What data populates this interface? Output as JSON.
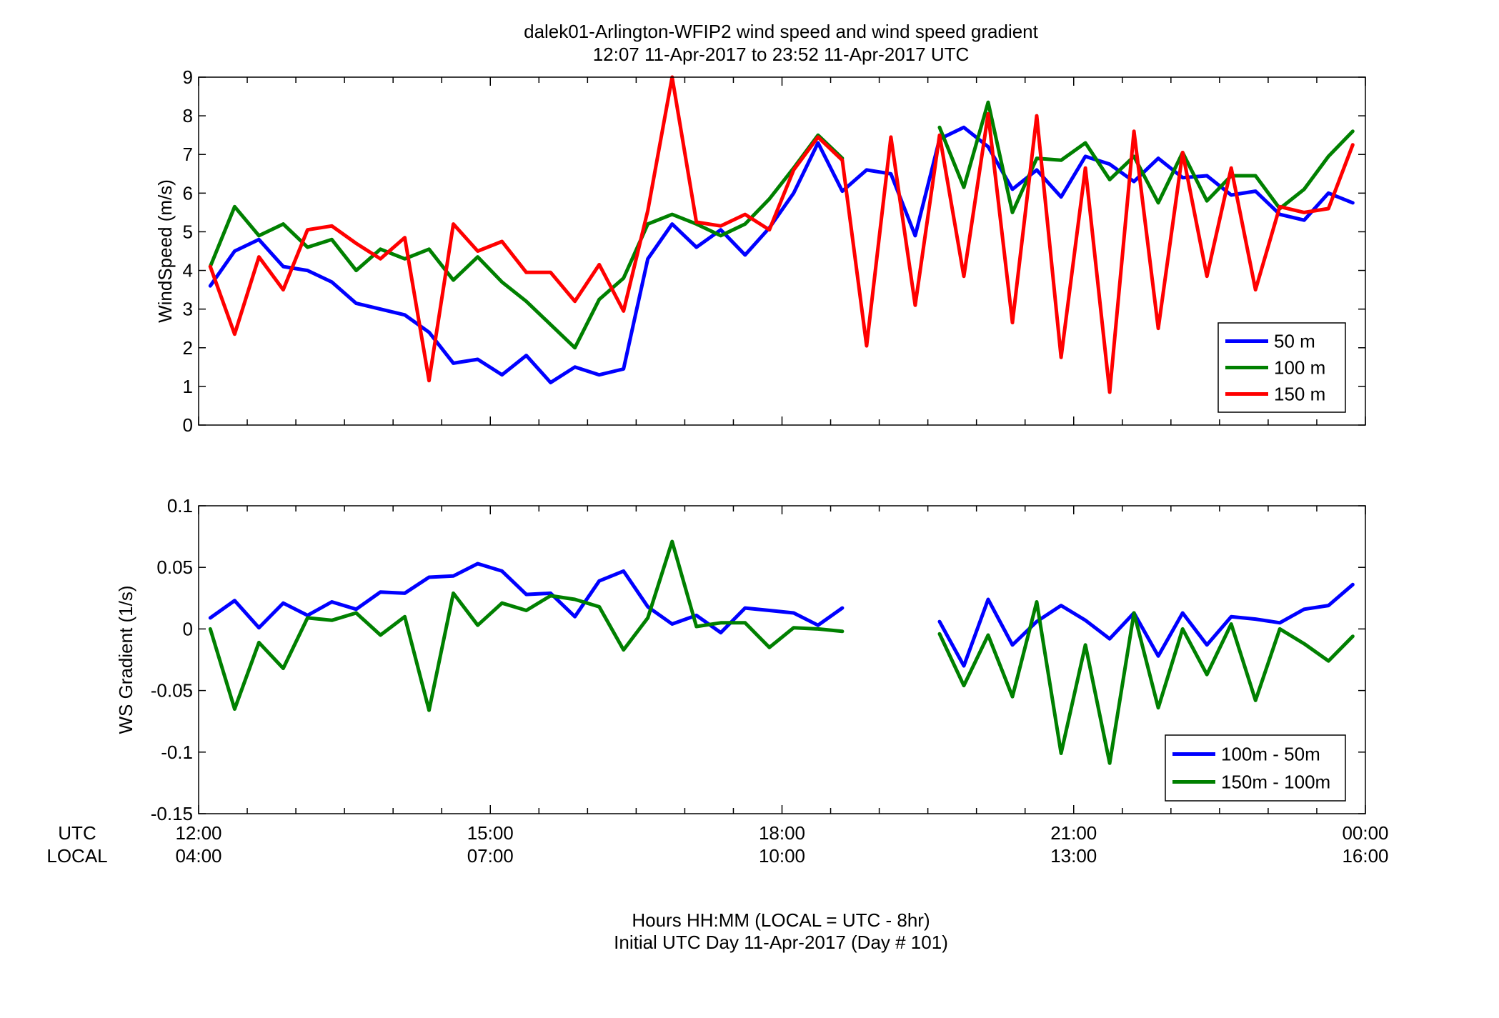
{
  "figure": {
    "title_line1": "dalek01-Arlington-WFIP2  wind speed and wind speed gradient",
    "title_line2": "12:07 11-Apr-2017 to 23:52 11-Apr-2017  UTC",
    "row_label_utc": "UTC",
    "row_label_local": "LOCAL",
    "footer_line1": "Hours HH:MM  (LOCAL = UTC - 8hr)",
    "footer_line2": "Initial UTC Day 11-Apr-2017 (Day # 101)",
    "x_ticks": [
      {
        "value": 12,
        "utc": "12:00",
        "local": "04:00"
      },
      {
        "value": 15,
        "utc": "15:00",
        "local": "07:00"
      },
      {
        "value": 18,
        "utc": "18:00",
        "local": "10:00"
      },
      {
        "value": 21,
        "utc": "21:00",
        "local": "13:00"
      },
      {
        "value": 24,
        "utc": "00:00",
        "local": "16:00"
      }
    ]
  },
  "chart_data": [
    {
      "type": "line",
      "ylabel": "WindSpeed (m/s)",
      "xlim": [
        12,
        24
      ],
      "ylim": [
        0,
        9
      ],
      "yticks": [
        0,
        1,
        2,
        3,
        4,
        5,
        6,
        7,
        8,
        9
      ],
      "ytick_labels": [
        "0",
        "1",
        "2",
        "3",
        "4",
        "5",
        "6",
        "7",
        "8",
        "9"
      ],
      "legend_position": "bottom-right",
      "x": [
        12.12,
        12.37,
        12.62,
        12.87,
        13.12,
        13.37,
        13.62,
        13.87,
        14.12,
        14.37,
        14.62,
        14.87,
        15.12,
        15.37,
        15.62,
        15.87,
        16.12,
        16.37,
        16.62,
        16.87,
        17.12,
        17.37,
        17.62,
        17.87,
        18.12,
        18.37,
        18.62,
        18.87,
        19.12,
        19.37,
        19.62,
        19.87,
        20.12,
        20.37,
        20.62,
        20.87,
        21.12,
        21.37,
        21.62,
        21.87,
        22.12,
        22.37,
        22.62,
        22.87,
        23.12,
        23.37,
        23.62,
        23.87
      ],
      "series": [
        {
          "name": "50 m",
          "color": "#0000ff",
          "values": [
            3.6,
            4.5,
            4.8,
            4.1,
            4.0,
            3.7,
            3.15,
            3.0,
            2.85,
            2.4,
            1.6,
            1.7,
            1.3,
            1.8,
            1.1,
            1.5,
            1.3,
            1.45,
            4.3,
            5.2,
            4.6,
            5.05,
            4.4,
            5.1,
            6.0,
            7.3,
            6.05,
            6.6,
            6.5,
            4.9,
            7.4,
            7.7,
            7.2,
            6.1,
            6.6,
            5.9,
            6.95,
            6.75,
            6.3,
            6.9,
            6.4,
            6.45,
            5.95,
            6.05,
            5.45,
            5.3,
            6.0,
            5.75
          ]
        },
        {
          "name": "100 m",
          "color": "#008000",
          "values": [
            4.1,
            5.65,
            4.9,
            5.2,
            4.6,
            4.8,
            4.0,
            4.55,
            4.3,
            4.55,
            3.75,
            4.35,
            3.7,
            3.2,
            2.6,
            2.0,
            3.25,
            3.8,
            5.2,
            5.45,
            5.2,
            4.9,
            5.2,
            5.85,
            6.65,
            7.5,
            6.9,
            null,
            null,
            null,
            7.7,
            6.15,
            8.35,
            5.5,
            6.9,
            6.85,
            7.3,
            6.35,
            6.95,
            5.75,
            7.05,
            5.8,
            6.45,
            6.45,
            5.6,
            6.1,
            6.95,
            7.6
          ]
        },
        {
          "name": "150 m",
          "color": "#ff0000",
          "values": [
            4.1,
            2.35,
            4.35,
            3.5,
            5.05,
            5.15,
            4.7,
            4.3,
            4.85,
            1.15,
            5.2,
            4.5,
            4.75,
            3.95,
            3.95,
            3.2,
            4.15,
            2.95,
            5.55,
            9.0,
            5.25,
            5.15,
            5.45,
            5.05,
            6.6,
            7.45,
            6.85,
            2.05,
            7.45,
            3.1,
            7.5,
            3.85,
            8.05,
            2.65,
            8.0,
            1.75,
            6.65,
            0.85,
            7.6,
            2.5,
            7.05,
            3.85,
            6.65,
            3.5,
            5.65,
            5.5,
            5.6,
            7.25
          ]
        }
      ]
    },
    {
      "type": "line",
      "ylabel": "WS Gradient (1/s)",
      "xlim": [
        12,
        24
      ],
      "ylim": [
        -0.15,
        0.1
      ],
      "yticks": [
        -0.15,
        -0.1,
        -0.05,
        0,
        0.05,
        0.1
      ],
      "ytick_labels": [
        "-0.15",
        "-0.1",
        "-0.05",
        "0",
        "0.05",
        "0.1"
      ],
      "legend_position": "bottom-right",
      "x": [
        12.12,
        12.37,
        12.62,
        12.87,
        13.12,
        13.37,
        13.62,
        13.87,
        14.12,
        14.37,
        14.62,
        14.87,
        15.12,
        15.37,
        15.62,
        15.87,
        16.12,
        16.37,
        16.62,
        16.87,
        17.12,
        17.37,
        17.62,
        17.87,
        18.12,
        18.37,
        18.62,
        18.87,
        19.12,
        19.37,
        19.62,
        19.87,
        20.12,
        20.37,
        20.62,
        20.87,
        21.12,
        21.37,
        21.62,
        21.87,
        22.12,
        22.37,
        22.62,
        22.87,
        23.12,
        23.37,
        23.62,
        23.87
      ],
      "series": [
        {
          "name": "100m - 50m",
          "color": "#0000ff",
          "values": [
            0.009,
            0.023,
            0.001,
            0.021,
            0.011,
            0.022,
            0.016,
            0.03,
            0.029,
            0.042,
            0.043,
            0.053,
            0.047,
            0.028,
            0.029,
            0.01,
            0.039,
            0.047,
            0.018,
            0.004,
            0.011,
            -0.003,
            0.017,
            0.015,
            0.013,
            0.003,
            0.017,
            null,
            null,
            null,
            0.006,
            -0.03,
            0.024,
            -0.013,
            0.006,
            0.019,
            0.007,
            -0.008,
            0.013,
            -0.022,
            0.013,
            -0.013,
            0.01,
            0.008,
            0.005,
            0.016,
            0.019,
            0.036
          ]
        },
        {
          "name": "150m - 100m",
          "color": "#008000",
          "values": [
            0.0,
            -0.065,
            -0.011,
            -0.032,
            0.009,
            0.007,
            0.013,
            -0.005,
            0.01,
            -0.066,
            0.029,
            0.003,
            0.021,
            0.015,
            0.027,
            0.024,
            0.018,
            -0.017,
            0.009,
            0.071,
            0.002,
            0.005,
            0.005,
            -0.015,
            0.001,
            0.0,
            -0.002,
            null,
            null,
            null,
            -0.004,
            -0.046,
            -0.005,
            -0.055,
            0.022,
            -0.101,
            -0.013,
            -0.109,
            0.013,
            -0.064,
            0.0,
            -0.037,
            0.004,
            -0.058,
            0.0,
            -0.012,
            -0.026,
            -0.006
          ]
        }
      ]
    }
  ]
}
